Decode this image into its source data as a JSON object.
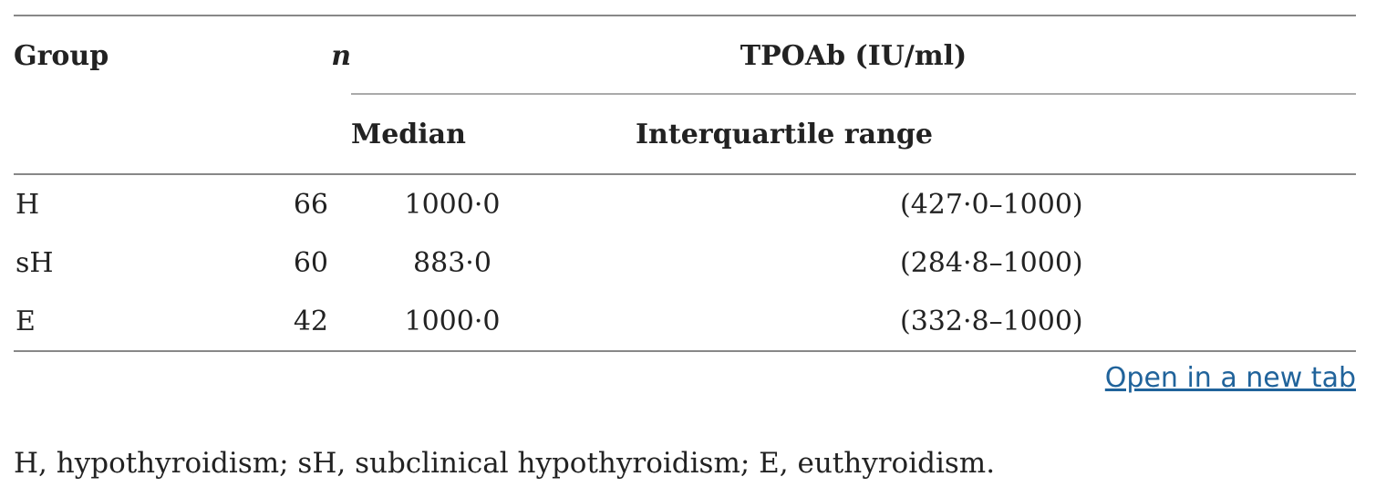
{
  "table": {
    "headers": {
      "group": "Group",
      "n": "n",
      "tpoab": "TPOAb (IU/ml)",
      "median": "Median",
      "iqr": "Interquartile range"
    },
    "rows": [
      {
        "group": "H",
        "n": "66",
        "median": "1000·0",
        "iqr": "(427·0–1000)"
      },
      {
        "group": "sH",
        "n": "60",
        "median": "883·0",
        "iqr": "(284·8–1000)"
      },
      {
        "group": "E",
        "n": "42",
        "median": "1000·0",
        "iqr": "(332·8–1000)"
      }
    ]
  },
  "link": {
    "open_new_tab": "Open in a new tab"
  },
  "footnote": "H, hypothyroidism; sH, subclinical hypothyroidism; E, euthyroidism.",
  "colors": {
    "link": "#20639b",
    "text": "#222222",
    "rule": "#888888"
  }
}
